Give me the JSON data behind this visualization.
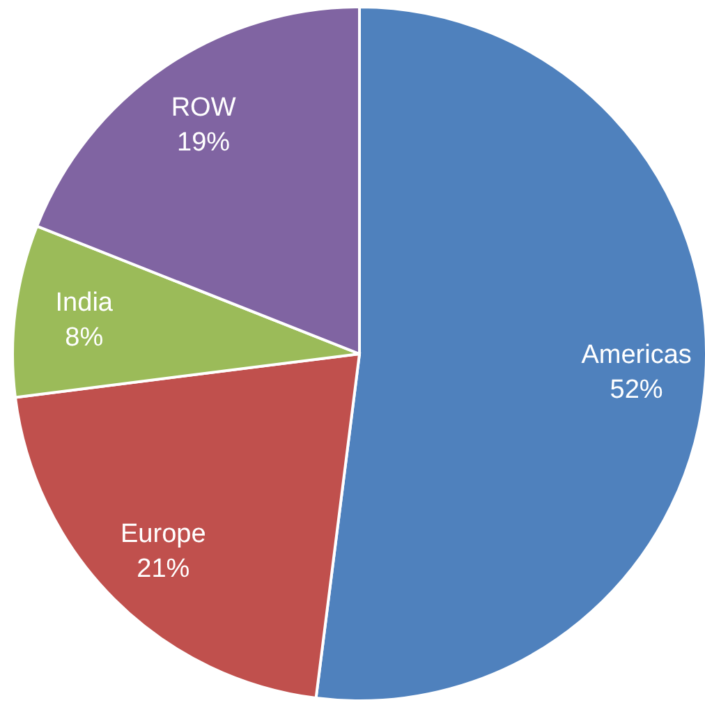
{
  "chart_data": {
    "type": "pie",
    "categories": [
      "Americas",
      "Europe",
      "India",
      "ROW"
    ],
    "values": [
      52,
      21,
      8,
      19
    ],
    "colors": [
      "#4f81bd",
      "#c0504d",
      "#9bbb59",
      "#8064a2"
    ],
    "value_labels": [
      "52%",
      "21%",
      "8%",
      "19%"
    ]
  }
}
